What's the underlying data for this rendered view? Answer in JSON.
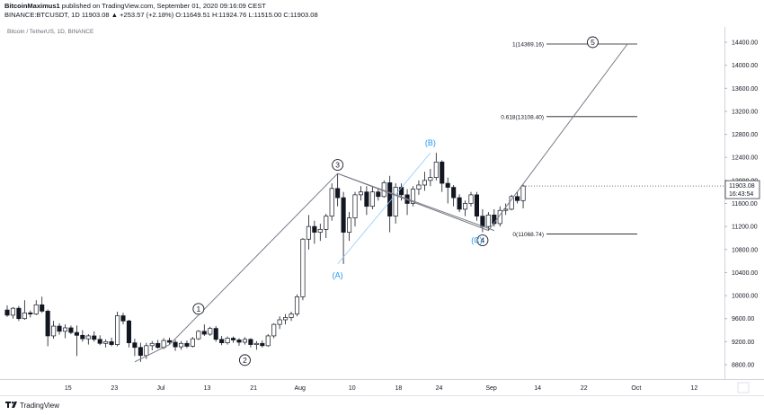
{
  "header": {
    "author": "BitcoinMaximus1",
    "published_text": "published on TradingView.com, September 01, 2020 09:16:09 CEST",
    "symbol_line": "BINANCE:BTCUSDT, 1D",
    "ohlc_line": "11903.08 ▲ +253.57 (+2.18%) O:11649.51 H:11924.76 L:11515.00 C:11903.08"
  },
  "footer": {
    "brand": "TradingView"
  },
  "chart_data": {
    "type": "candlestick",
    "title": "Bitcoin / TetherUS, 1D, BINANCE",
    "ylim": [
      8500,
      14700
    ],
    "y_ticks": [
      "14400.00",
      "14000.00",
      "13600.00",
      "13200.00",
      "12800.00",
      "12400.00",
      "12000.00",
      "11600.00",
      "11200.00",
      "10800.00",
      "10400.00",
      "10000.00",
      "9600.00",
      "9200.00",
      "8800.00"
    ],
    "x_ticks": [
      "15",
      "23",
      "Jul",
      "13",
      "21",
      "Aug",
      "10",
      "18",
      "24",
      "Sep",
      "14",
      "22",
      "Oct",
      "12"
    ],
    "last_price": "11903.08",
    "countdown": "16:43:54",
    "candles": [
      {
        "o": 9750,
        "h": 9830,
        "l": 9630,
        "c": 9660
      },
      {
        "o": 9660,
        "h": 9800,
        "l": 9600,
        "c": 9780
      },
      {
        "o": 9780,
        "h": 9820,
        "l": 9560,
        "c": 9600
      },
      {
        "o": 9600,
        "h": 9920,
        "l": 9580,
        "c": 9700
      },
      {
        "o": 9700,
        "h": 9740,
        "l": 9620,
        "c": 9680
      },
      {
        "o": 9680,
        "h": 9920,
        "l": 9660,
        "c": 9840
      },
      {
        "o": 9840,
        "h": 9980,
        "l": 9700,
        "c": 9730
      },
      {
        "o": 9730,
        "h": 9760,
        "l": 9120,
        "c": 9300
      },
      {
        "o": 9300,
        "h": 9560,
        "l": 9250,
        "c": 9470
      },
      {
        "o": 9470,
        "h": 9520,
        "l": 9320,
        "c": 9380
      },
      {
        "o": 9380,
        "h": 9500,
        "l": 9260,
        "c": 9440
      },
      {
        "o": 9440,
        "h": 9480,
        "l": 9330,
        "c": 9360
      },
      {
        "o": 9360,
        "h": 9480,
        "l": 8950,
        "c": 9310
      },
      {
        "o": 9310,
        "h": 9400,
        "l": 9200,
        "c": 9250
      },
      {
        "o": 9250,
        "h": 9330,
        "l": 9150,
        "c": 9300
      },
      {
        "o": 9300,
        "h": 9380,
        "l": 9200,
        "c": 9240
      },
      {
        "o": 9240,
        "h": 9310,
        "l": 9140,
        "c": 9170
      },
      {
        "o": 9170,
        "h": 9240,
        "l": 9100,
        "c": 9200
      },
      {
        "o": 9200,
        "h": 9270,
        "l": 9120,
        "c": 9150
      },
      {
        "o": 9150,
        "h": 9720,
        "l": 9120,
        "c": 9650
      },
      {
        "o": 9650,
        "h": 9700,
        "l": 9500,
        "c": 9560
      },
      {
        "o": 9560,
        "h": 9580,
        "l": 9100,
        "c": 9180
      },
      {
        "o": 9180,
        "h": 9250,
        "l": 8950,
        "c": 9100
      },
      {
        "o": 9100,
        "h": 9180,
        "l": 8850,
        "c": 8960
      },
      {
        "o": 8960,
        "h": 9180,
        "l": 8900,
        "c": 9130
      },
      {
        "o": 9130,
        "h": 9210,
        "l": 9050,
        "c": 9170
      },
      {
        "o": 9170,
        "h": 9230,
        "l": 9080,
        "c": 9100
      },
      {
        "o": 9100,
        "h": 9260,
        "l": 9070,
        "c": 9220
      },
      {
        "o": 9220,
        "h": 9270,
        "l": 9150,
        "c": 9190
      },
      {
        "o": 9190,
        "h": 9230,
        "l": 9040,
        "c": 9110
      },
      {
        "o": 9110,
        "h": 9210,
        "l": 9060,
        "c": 9170
      },
      {
        "o": 9170,
        "h": 9220,
        "l": 9090,
        "c": 9120
      },
      {
        "o": 9120,
        "h": 9280,
        "l": 9100,
        "c": 9250
      },
      {
        "o": 9250,
        "h": 9400,
        "l": 9230,
        "c": 9380
      },
      {
        "o": 9380,
        "h": 9500,
        "l": 9300,
        "c": 9330
      },
      {
        "o": 9330,
        "h": 9460,
        "l": 9300,
        "c": 9430
      },
      {
        "o": 9430,
        "h": 9470,
        "l": 9200,
        "c": 9240
      },
      {
        "o": 9240,
        "h": 9300,
        "l": 9140,
        "c": 9180
      },
      {
        "o": 9180,
        "h": 9290,
        "l": 9150,
        "c": 9260
      },
      {
        "o": 9260,
        "h": 9290,
        "l": 9180,
        "c": 9230
      },
      {
        "o": 9230,
        "h": 9260,
        "l": 9130,
        "c": 9190
      },
      {
        "o": 9190,
        "h": 9280,
        "l": 9150,
        "c": 9240
      },
      {
        "o": 9240,
        "h": 9260,
        "l": 9100,
        "c": 9150
      },
      {
        "o": 9150,
        "h": 9210,
        "l": 9060,
        "c": 9170
      },
      {
        "o": 9170,
        "h": 9220,
        "l": 9100,
        "c": 9130
      },
      {
        "o": 9130,
        "h": 9330,
        "l": 9110,
        "c": 9300
      },
      {
        "o": 9300,
        "h": 9520,
        "l": 9260,
        "c": 9500
      },
      {
        "o": 9500,
        "h": 9640,
        "l": 9420,
        "c": 9580
      },
      {
        "o": 9580,
        "h": 9680,
        "l": 9500,
        "c": 9620
      },
      {
        "o": 9620,
        "h": 9720,
        "l": 9560,
        "c": 9680
      },
      {
        "o": 9680,
        "h": 10020,
        "l": 9640,
        "c": 9980
      },
      {
        "o": 9980,
        "h": 11000,
        "l": 9920,
        "c": 10980
      },
      {
        "o": 10980,
        "h": 11400,
        "l": 10800,
        "c": 11200
      },
      {
        "o": 11200,
        "h": 11300,
        "l": 10900,
        "c": 11100
      },
      {
        "o": 11100,
        "h": 11250,
        "l": 10950,
        "c": 11150
      },
      {
        "o": 11150,
        "h": 11420,
        "l": 11000,
        "c": 11380
      },
      {
        "o": 11380,
        "h": 11950,
        "l": 11300,
        "c": 11860
      },
      {
        "o": 11860,
        "h": 12120,
        "l": 11550,
        "c": 11700
      },
      {
        "o": 11700,
        "h": 11800,
        "l": 10550,
        "c": 11100
      },
      {
        "o": 11100,
        "h": 11450,
        "l": 10950,
        "c": 11350
      },
      {
        "o": 11350,
        "h": 11800,
        "l": 11200,
        "c": 11750
      },
      {
        "o": 11750,
        "h": 11900,
        "l": 11650,
        "c": 11800
      },
      {
        "o": 11800,
        "h": 11900,
        "l": 11400,
        "c": 11550
      },
      {
        "o": 11550,
        "h": 11900,
        "l": 11500,
        "c": 11800
      },
      {
        "o": 11800,
        "h": 11850,
        "l": 11650,
        "c": 11720
      },
      {
        "o": 11720,
        "h": 12000,
        "l": 11700,
        "c": 11960
      },
      {
        "o": 11960,
        "h": 12080,
        "l": 11100,
        "c": 11380
      },
      {
        "o": 11380,
        "h": 11950,
        "l": 11250,
        "c": 11880
      },
      {
        "o": 11880,
        "h": 11950,
        "l": 11650,
        "c": 11750
      },
      {
        "o": 11750,
        "h": 11850,
        "l": 11400,
        "c": 11600
      },
      {
        "o": 11600,
        "h": 11900,
        "l": 11550,
        "c": 11850
      },
      {
        "o": 11850,
        "h": 12000,
        "l": 11750,
        "c": 11920
      },
      {
        "o": 11920,
        "h": 12150,
        "l": 11820,
        "c": 12000
      },
      {
        "o": 12000,
        "h": 12200,
        "l": 11900,
        "c": 12050
      },
      {
        "o": 12050,
        "h": 12480,
        "l": 12000,
        "c": 12320
      },
      {
        "o": 12320,
        "h": 12350,
        "l": 11800,
        "c": 11950
      },
      {
        "o": 11950,
        "h": 12050,
        "l": 11600,
        "c": 11880
      },
      {
        "o": 11880,
        "h": 11920,
        "l": 11550,
        "c": 11700
      },
      {
        "o": 11700,
        "h": 11760,
        "l": 11450,
        "c": 11500
      },
      {
        "o": 11500,
        "h": 11650,
        "l": 11380,
        "c": 11600
      },
      {
        "o": 11600,
        "h": 11800,
        "l": 11550,
        "c": 11750
      },
      {
        "o": 11750,
        "h": 11800,
        "l": 11300,
        "c": 11380
      },
      {
        "o": 11380,
        "h": 11500,
        "l": 11100,
        "c": 11200
      },
      {
        "o": 11200,
        "h": 11450,
        "l": 11130,
        "c": 11400
      },
      {
        "o": 11400,
        "h": 11500,
        "l": 11200,
        "c": 11250
      },
      {
        "o": 11250,
        "h": 11550,
        "l": 11200,
        "c": 11480
      },
      {
        "o": 11480,
        "h": 11600,
        "l": 11400,
        "c": 11500
      },
      {
        "o": 11500,
        "h": 11750,
        "l": 11480,
        "c": 11720
      },
      {
        "o": 11720,
        "h": 11800,
        "l": 11600,
        "c": 11650
      },
      {
        "o": 11650,
        "h": 11925,
        "l": 11515,
        "c": 11903
      }
    ],
    "fib_levels": [
      {
        "label": "1(14369.16)",
        "value": 14369.16
      },
      {
        "label": "0.618(13108.40)",
        "value": 13108.4
      },
      {
        "label": "0(11068.74)",
        "value": 11068.74
      }
    ],
    "impulse_wave": [
      {
        "i": 22,
        "v": 8850
      },
      {
        "i": 28,
        "v": 9150
      },
      {
        "i": 57,
        "v": 12120
      },
      {
        "i": 83,
        "v": 11130
      },
      {
        "i": 107,
        "v": 14369
      }
    ],
    "correction_wave": [
      {
        "i": 57,
        "v": 12120
      },
      {
        "i": 84,
        "v": 11130
      }
    ],
    "abc_wave": [
      {
        "i": 57,
        "v": 10550
      },
      {
        "i": 73,
        "v": 12480
      }
    ],
    "wave_labels": [
      {
        "text": "1",
        "i": 33,
        "v": 9770,
        "circled": true,
        "color": "#131722"
      },
      {
        "text": "2",
        "i": 41,
        "v": 8880,
        "circled": true,
        "color": "#131722"
      },
      {
        "text": "3",
        "i": 57,
        "v": 12270,
        "circled": true,
        "color": "#131722"
      },
      {
        "text": "4",
        "i": 82,
        "v": 10960,
        "circled": true,
        "color": "#131722"
      },
      {
        "text": "5",
        "i": 101,
        "v": 14400,
        "circled": true,
        "color": "#131722"
      },
      {
        "text": "(A)",
        "i": 57,
        "v": 10350,
        "circled": false,
        "color": "#2196f3"
      },
      {
        "text": "(B)",
        "i": 73,
        "v": 12650,
        "circled": false,
        "color": "#2196f3"
      },
      {
        "text": "(C)",
        "i": 81,
        "v": 10960,
        "circled": false,
        "color": "#2196f3"
      }
    ]
  }
}
